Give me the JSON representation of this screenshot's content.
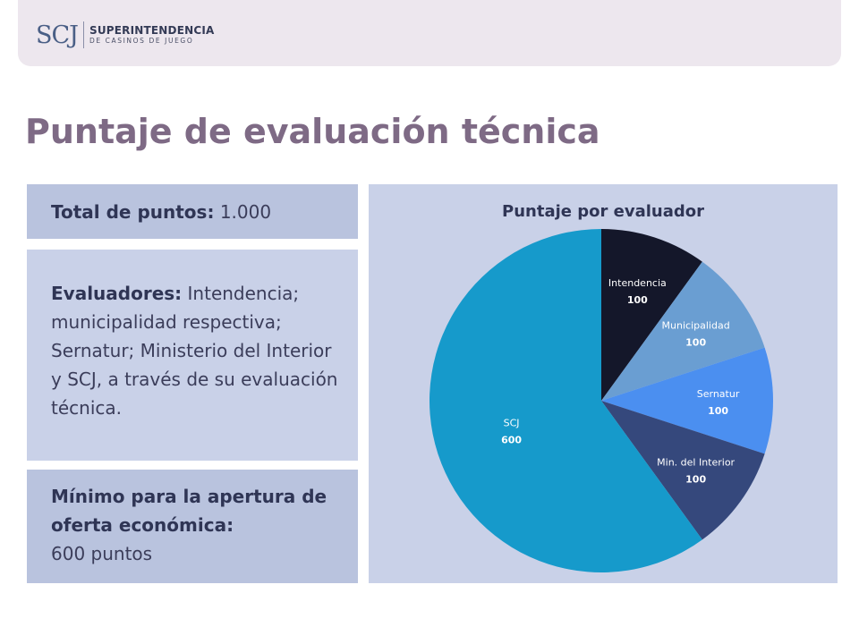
{
  "header": {
    "logo_mark": "SCJ",
    "logo_line1": "SUPERINTENDENCIA",
    "logo_line2": "DE CASINOS DE JUEGO"
  },
  "title": "Puntaje de evaluación técnica",
  "total": {
    "label": "Total de puntos:",
    "value": "1.000"
  },
  "evaluadores": {
    "label": "Evaluadores:",
    "text": "Intendencia; municipalidad respectiva; Sernatur; Ministerio del Interior y SCJ, a través de su evaluación técnica."
  },
  "minimo": {
    "label": "Mínimo para la apertura de oferta económica:",
    "value": "600 puntos"
  },
  "chart_data": {
    "type": "pie",
    "title": "Puntaje por evaluador",
    "categories": [
      "Intendencia",
      "Municipalidad",
      "Sernatur",
      "Min. del Interior",
      "SCJ"
    ],
    "values": [
      100,
      100,
      100,
      100,
      600
    ],
    "colors": [
      "#14172a",
      "#6a9ed2",
      "#4b8ff0",
      "#35487c",
      "#169acb"
    ],
    "label_colors": [
      "#ffffff",
      "#ffffff",
      "#ffffff",
      "#ffffff",
      "#ffffff"
    ],
    "legend": "none"
  }
}
